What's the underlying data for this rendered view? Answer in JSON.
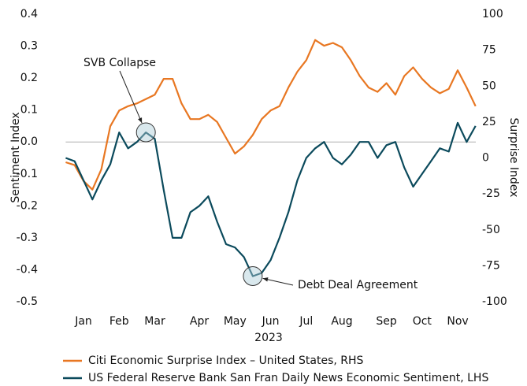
{
  "chart_data": {
    "type": "line",
    "xlabel": "2023",
    "ylabel": "Sentiment Index",
    "y2label": "Surprise Index",
    "categories": [
      null,
      null,
      "Jan",
      null,
      null,
      null,
      "Feb",
      null,
      null,
      null,
      "Mar",
      null,
      null,
      null,
      null,
      "Apr",
      null,
      null,
      null,
      "May",
      null,
      null,
      null,
      "Jun",
      null,
      null,
      null,
      "Jul",
      null,
      null,
      null,
      "Aug",
      null,
      null,
      null,
      null,
      "Sep",
      null,
      null,
      null,
      "Oct",
      null,
      null,
      null,
      "Nov",
      null,
      null
    ],
    "series": [
      {
        "name": "Citi Economic Surprise Index – United States, RHS",
        "color": "#e87722",
        "axis": "y2",
        "values": [
          -3,
          -5,
          -16,
          -22,
          -8,
          22,
          33,
          36,
          38,
          41,
          44,
          55,
          55,
          38,
          27,
          27,
          30,
          25,
          14,
          3,
          8,
          16,
          27,
          33,
          36,
          49,
          60,
          68,
          82,
          78,
          80,
          77,
          68,
          57,
          49,
          46,
          52,
          44,
          57,
          63,
          55,
          49,
          45,
          48,
          61,
          49,
          36
        ]
      },
      {
        "name": "US Federal Reserve Bank San Fran Daily News Economic Sentiment, LHS",
        "color": "#0b4a5c",
        "values": [
          -0.05,
          -0.06,
          -0.12,
          -0.18,
          -0.12,
          -0.07,
          0.03,
          -0.02,
          0.0,
          0.03,
          0.01,
          -0.15,
          -0.3,
          -0.3,
          -0.22,
          -0.2,
          -0.17,
          -0.25,
          -0.32,
          -0.33,
          -0.36,
          -0.42,
          -0.41,
          -0.37,
          -0.3,
          -0.22,
          -0.12,
          -0.05,
          -0.02,
          0.0,
          -0.05,
          -0.07,
          -0.04,
          0.0,
          0.0,
          -0.05,
          -0.01,
          0.0,
          -0.08,
          -0.14,
          -0.1,
          -0.06,
          -0.02,
          -0.03,
          0.06,
          0.0,
          0.05
        ]
      }
    ],
    "ylim": [
      -0.5,
      0.4
    ],
    "yticks": [
      0.4,
      0.3,
      0.2,
      0.1,
      {
        "value": 0,
        "label": "0.0"
      },
      -0.1,
      -0.2,
      -0.3,
      -0.4,
      -0.5
    ],
    "y2lim": [
      -100,
      100
    ],
    "y2ticks": [
      100,
      75,
      50,
      25,
      0,
      -25,
      -50,
      -75,
      -100
    ],
    "annotations": [
      {
        "text": "SVB Collapse",
        "series": 1,
        "index": 9
      },
      {
        "text": "Debt Deal Agreement",
        "series": 1,
        "index": 21
      }
    ],
    "legend": "bottom"
  }
}
